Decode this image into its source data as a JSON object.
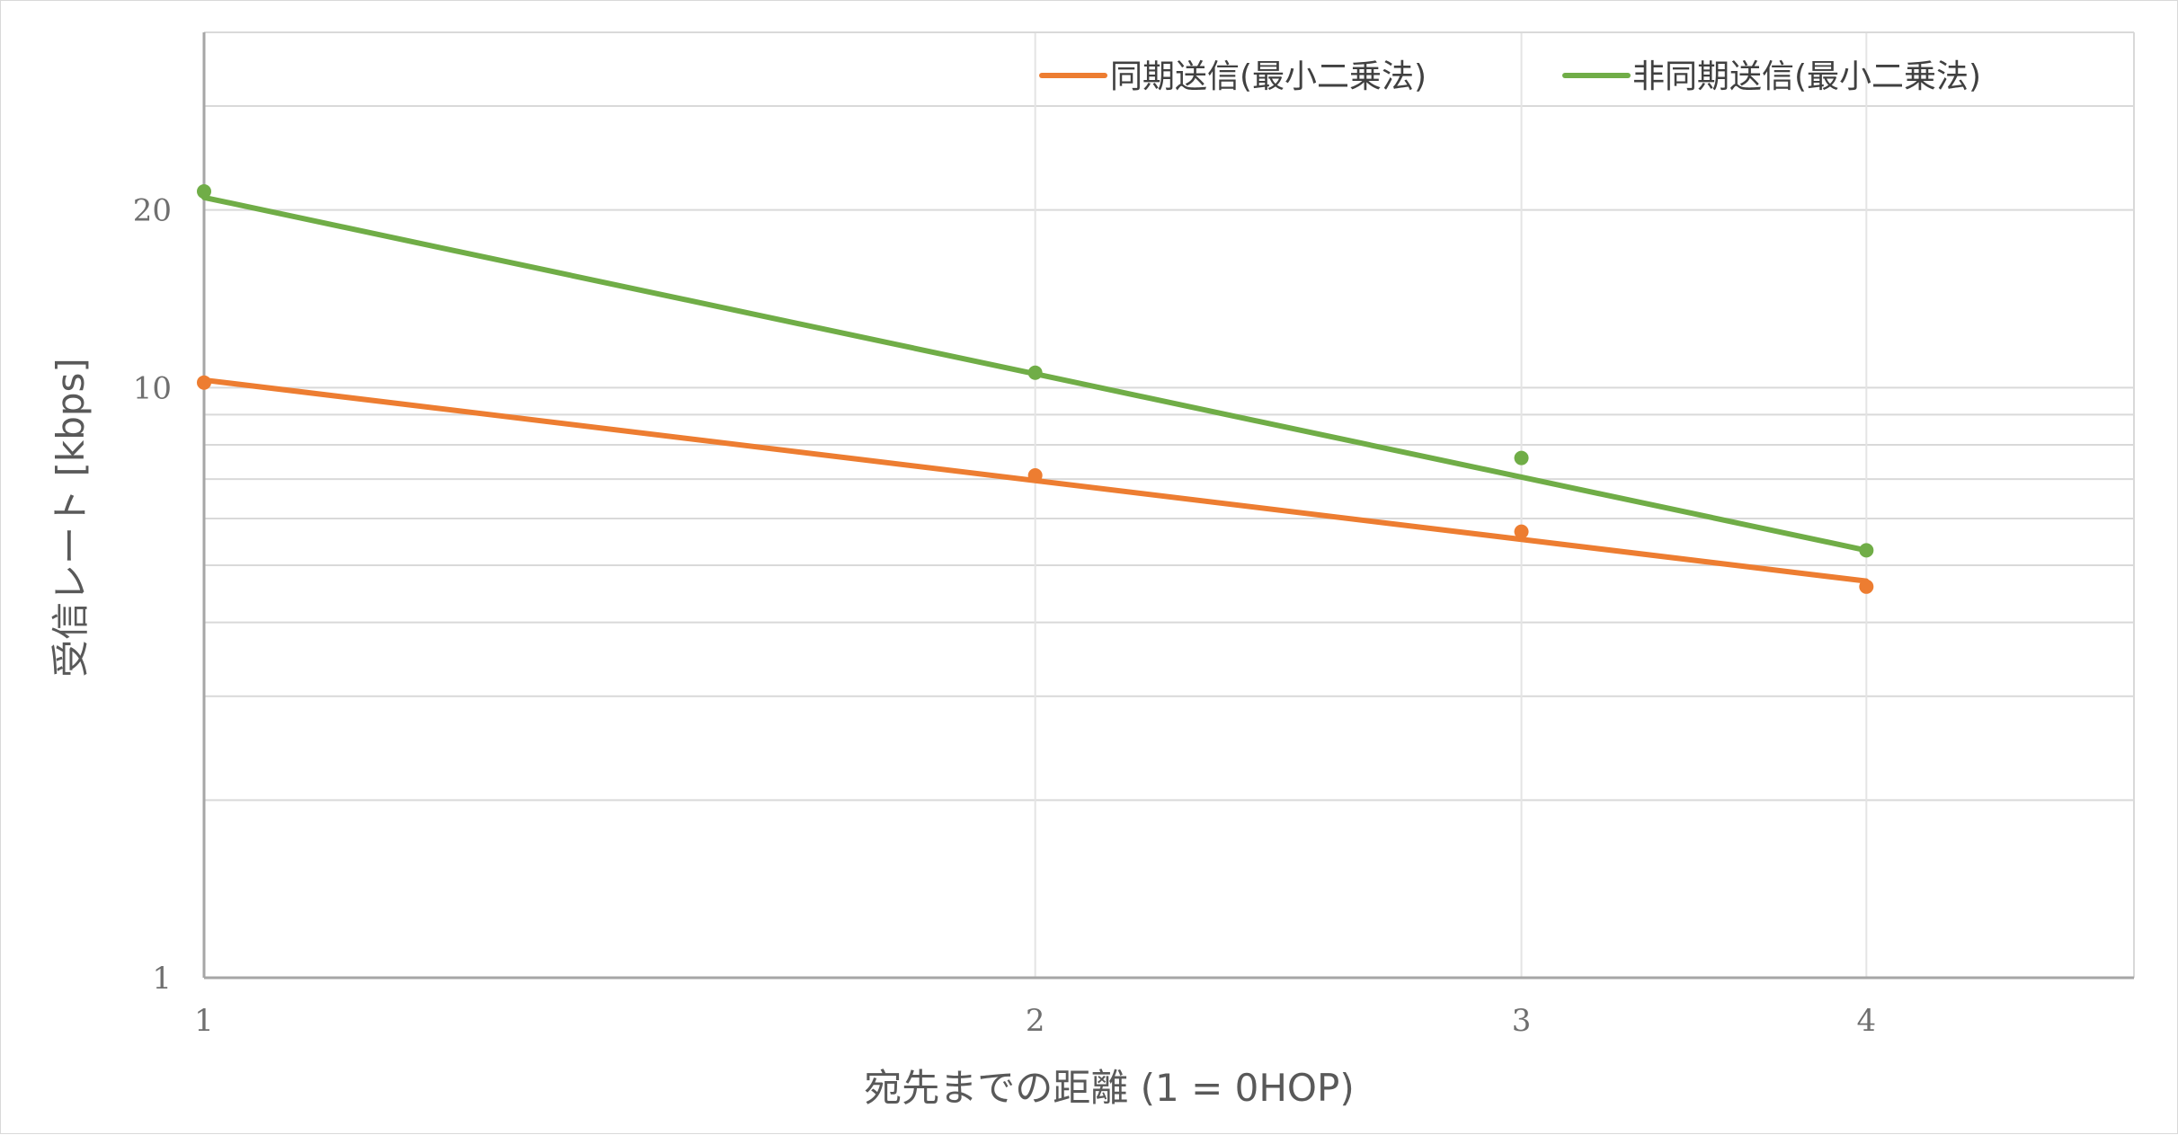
{
  "chart_data": {
    "type": "scatter",
    "title": "",
    "xlabel": "宛先までの距離 (1 = 0HOP)",
    "ylabel": "受信レート [kbps]",
    "x_scale": "log",
    "y_scale": "log",
    "xlim": [
      1,
      5
    ],
    "ylim": [
      1,
      40
    ],
    "x_ticks": [
      1,
      2,
      3,
      4
    ],
    "y_ticks": [
      1,
      10,
      20
    ],
    "grid": true,
    "legend_position": "top-right",
    "series": [
      {
        "name": "同期送信(最小二乗法)",
        "color": "#ED7D31",
        "points": [
          {
            "x": 1,
            "y": 10.2
          },
          {
            "x": 2,
            "y": 7.1
          },
          {
            "x": 3,
            "y": 5.7
          },
          {
            "x": 4,
            "y": 4.6
          }
        ],
        "trendline": {
          "x_start": 1,
          "y_start": 10.3,
          "x_end": 4,
          "y_end": 4.7
        }
      },
      {
        "name": "非同期送信(最小二乗法)",
        "color": "#70AD47",
        "points": [
          {
            "x": 1,
            "y": 21.5
          },
          {
            "x": 2,
            "y": 10.6
          },
          {
            "x": 3,
            "y": 7.6
          },
          {
            "x": 4,
            "y": 5.3
          }
        ],
        "trendline": {
          "x_start": 1,
          "y_start": 21.0,
          "x_end": 4,
          "y_end": 5.3
        }
      }
    ]
  }
}
